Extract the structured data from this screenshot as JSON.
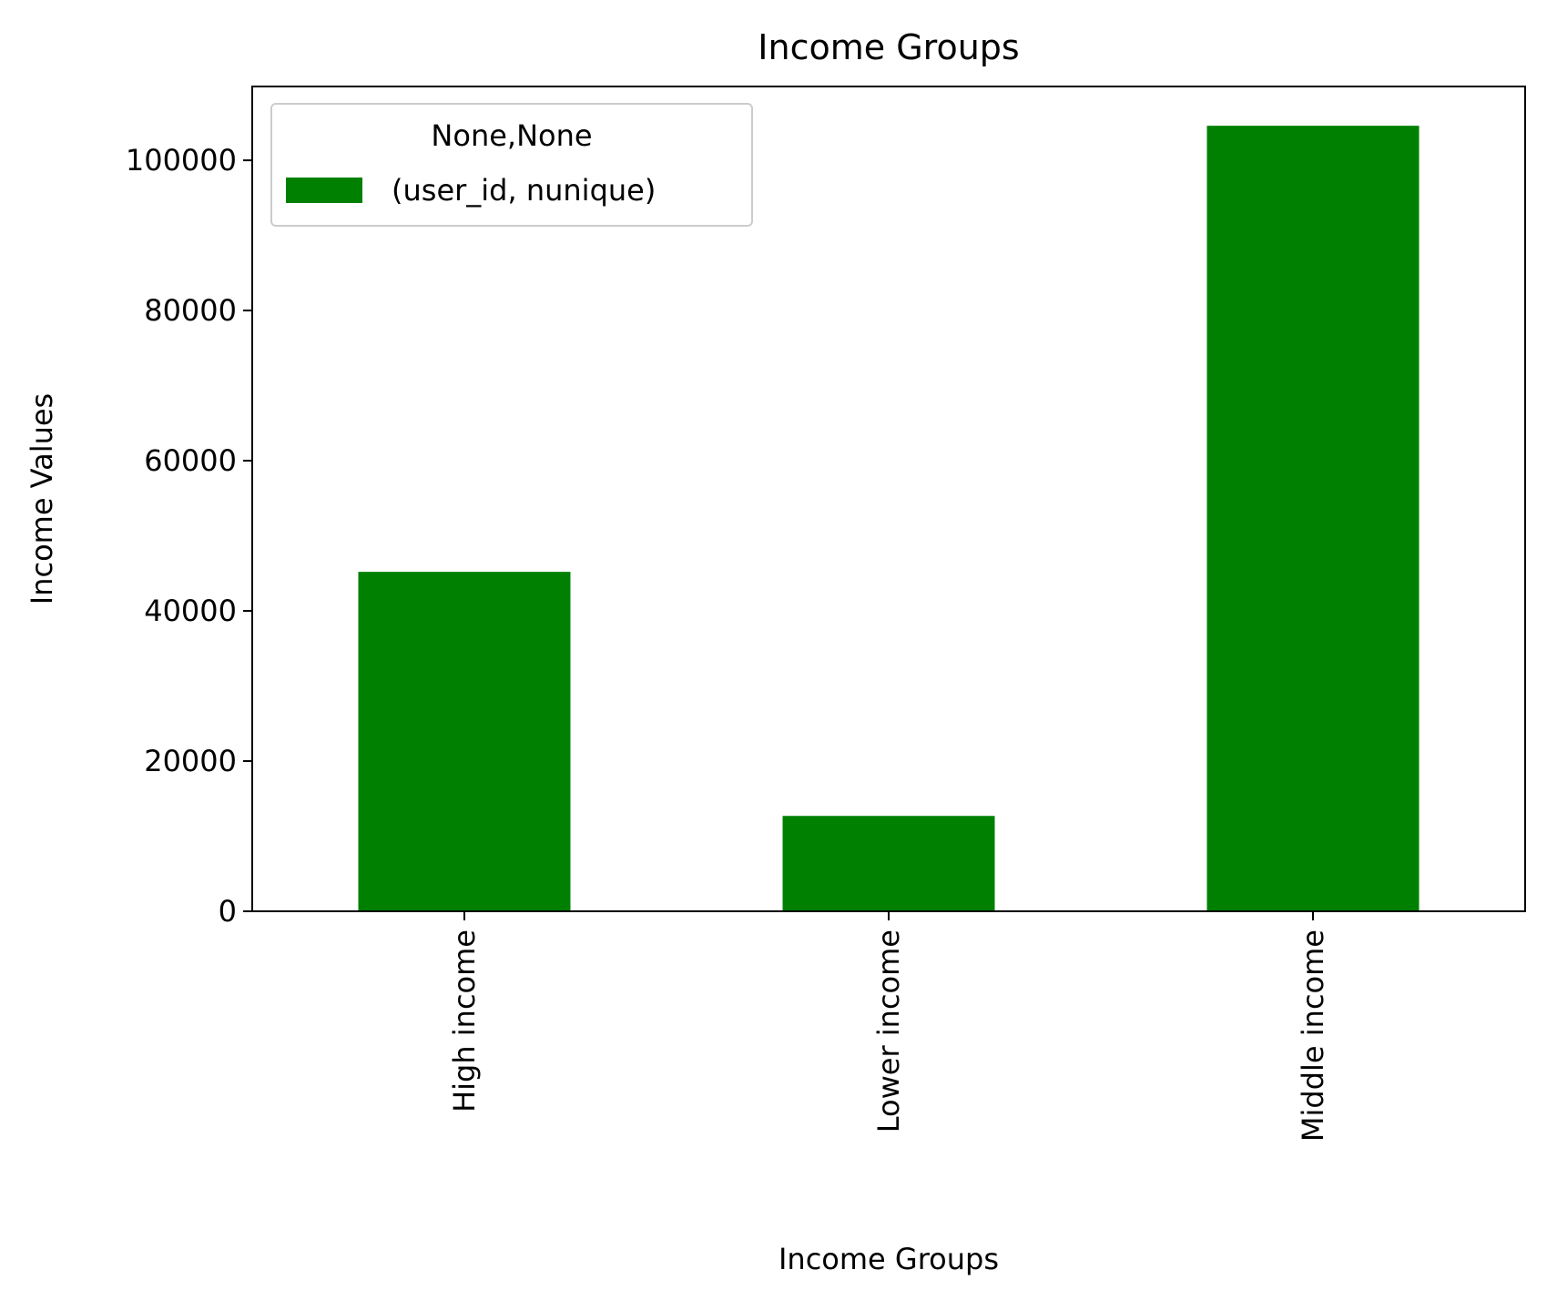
{
  "chart_data": {
    "type": "bar",
    "title": "Income Groups",
    "xlabel": "Income Groups",
    "ylabel": "Income Values",
    "categories": [
      "High income",
      "Lower income",
      "Middle income"
    ],
    "series": [
      {
        "name": "(user_id, nunique)",
        "values": [
          45200,
          12700,
          104600
        ],
        "color": "#008000"
      }
    ],
    "legend": {
      "title": "None,None",
      "position": "top-left"
    },
    "yticks": [
      0,
      20000,
      40000,
      60000,
      80000,
      100000
    ],
    "ylim": [
      0,
      109830
    ],
    "grid": false,
    "xtick_rotation": "vertical"
  }
}
